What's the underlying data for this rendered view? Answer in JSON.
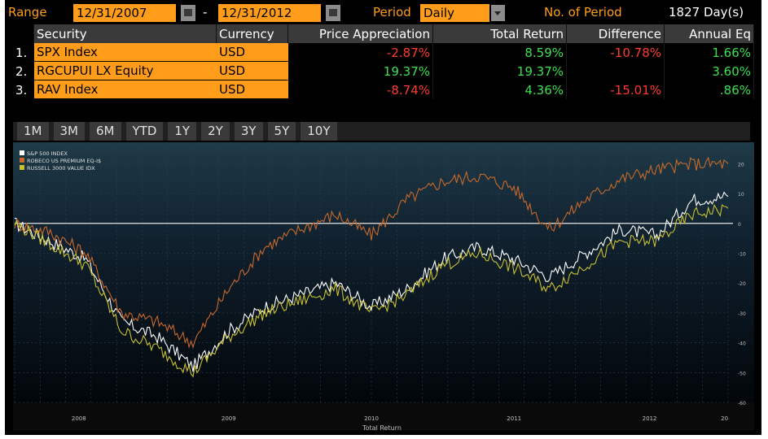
{
  "range": {
    "label": "Range",
    "start": "12/31/2007",
    "dash": "-",
    "end": "12/31/2012",
    "period_label": "Period",
    "period_value": "Daily",
    "num_period_label": "No. of Period",
    "num_period_value": "1827 Day(s)"
  },
  "table": {
    "headers": [
      "Security",
      "Currency",
      "Price Appreciation",
      "Total Return",
      "Difference",
      "Annual Eq"
    ],
    "rows": [
      {
        "num": "1.",
        "security": "SPX Index",
        "currency": "USD",
        "price_app": "-2.87%",
        "total_return": "8.59%",
        "difference": "-10.78%",
        "annual": "1.66%"
      },
      {
        "num": "2.",
        "security": "RGCUPUI LX Equity",
        "currency": "USD",
        "price_app": "19.37%",
        "total_return": "19.37%",
        "difference": "",
        "annual": "3.60%"
      },
      {
        "num": "3.",
        "security": "RAV Index",
        "currency": "USD",
        "price_app": "-8.74%",
        "total_return": "4.36%",
        "difference": "-15.01%",
        "annual": ".86%"
      }
    ]
  },
  "tabs": [
    "1M",
    "3M",
    "6M",
    "YTD",
    "1Y",
    "2Y",
    "3Y",
    "5Y",
    "10Y"
  ],
  "colors": {
    "orange": "#ff9c1a",
    "positive": "#3ce050",
    "negative": "#ff3b30"
  },
  "chart_data": {
    "type": "line",
    "xlabel": "Total Return",
    "x_ticks": [
      "2008",
      "2009",
      "2010",
      "2011",
      "2012",
      "20"
    ],
    "y_ticks": [
      20,
      10,
      0,
      -10,
      -20,
      -30,
      -40,
      -50,
      -60
    ],
    "ylim": [
      -60,
      25
    ],
    "legend_position": "top-left",
    "grid": true,
    "x": [
      "2008-01",
      "2008-04",
      "2008-07",
      "2008-10",
      "2009-01",
      "2009-03",
      "2009-06",
      "2009-09",
      "2010-01",
      "2010-04",
      "2010-07",
      "2010-10",
      "2011-01",
      "2011-04",
      "2011-07",
      "2011-10",
      "2012-01",
      "2012-04",
      "2012-07",
      "2012-10",
      "2012-12"
    ],
    "series": [
      {
        "name": "S&P 500 INDEX",
        "color": "#ffffff",
        "values": [
          0,
          -6,
          -12,
          -33,
          -38,
          -48,
          -36,
          -28,
          -24,
          -20,
          -28,
          -22,
          -12,
          -8,
          -12,
          -18,
          -10,
          -2,
          -4,
          8,
          9
        ]
      },
      {
        "name": "ROBECO US PREMIUM EQ-I$",
        "color": "#c8692a",
        "values": [
          0,
          -3,
          -10,
          -30,
          -33,
          -40,
          -22,
          -8,
          -2,
          3,
          -4,
          8,
          14,
          16,
          12,
          -2,
          8,
          15,
          18,
          20,
          20
        ]
      },
      {
        "name": "RUSSELL 3000 VALUE IDX",
        "color": "#c8c030",
        "values": [
          0,
          -7,
          -14,
          -36,
          -42,
          -50,
          -38,
          -30,
          -26,
          -22,
          -30,
          -24,
          -14,
          -10,
          -15,
          -22,
          -14,
          -6,
          -6,
          3,
          5
        ]
      }
    ]
  }
}
